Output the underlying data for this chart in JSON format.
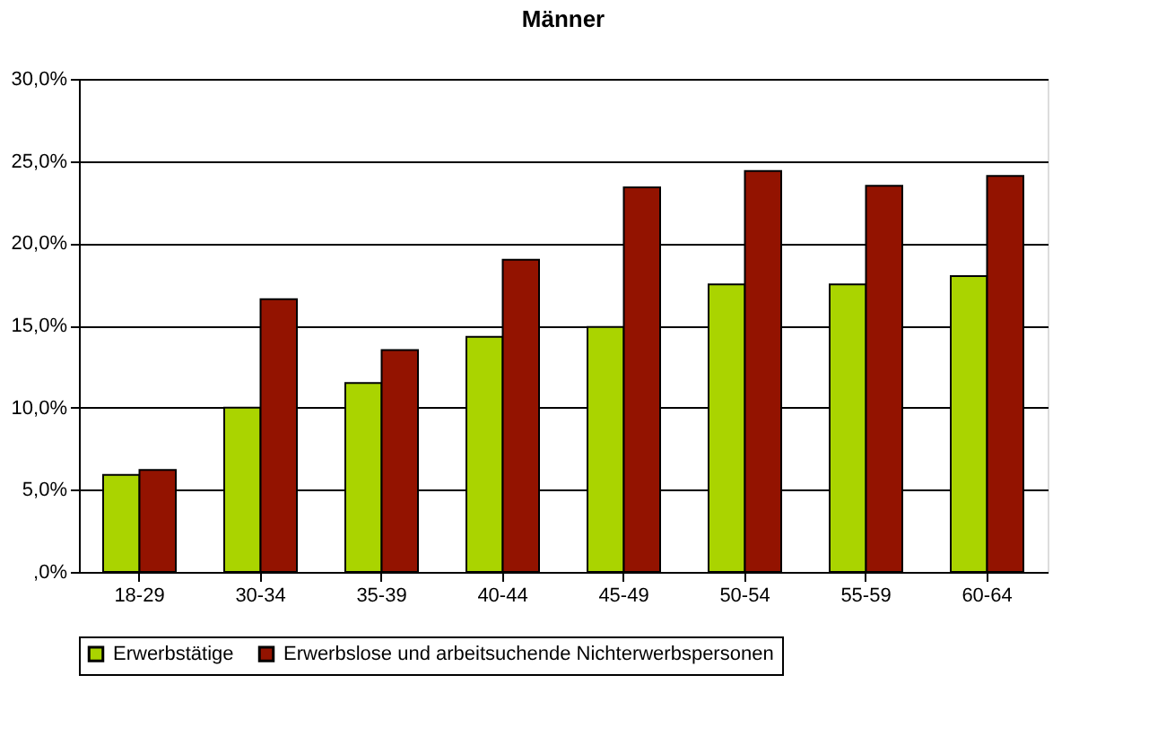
{
  "chart_data": {
    "type": "bar",
    "title": "Männer",
    "categories": [
      "18-29",
      "30-34",
      "35-39",
      "40-44",
      "45-49",
      "50-54",
      "55-59",
      "60-64"
    ],
    "series": [
      {
        "name": "Erwerbstätige",
        "color": "#aad400",
        "values": [
          5.9,
          10.0,
          11.5,
          14.3,
          14.9,
          17.5,
          17.5,
          18.0
        ]
      },
      {
        "name": "Erwerbslose und arbeitsuchende Nichterwerbspersonen",
        "color": "#931300",
        "values": [
          6.2,
          16.6,
          13.5,
          19.0,
          23.4,
          24.4,
          23.5,
          24.1
        ]
      }
    ],
    "ylim": [
      0,
      30
    ],
    "yticks": [
      {
        "value": 0,
        "label": ",0%"
      },
      {
        "value": 5,
        "label": "5,0%"
      },
      {
        "value": 10,
        "label": "10,0%"
      },
      {
        "value": 15,
        "label": "15,0%"
      },
      {
        "value": 20,
        "label": "20,0%"
      },
      {
        "value": 25,
        "label": "25,0%"
      },
      {
        "value": 30,
        "label": "30,0%"
      }
    ],
    "grid": "y",
    "legend": "bottom"
  }
}
